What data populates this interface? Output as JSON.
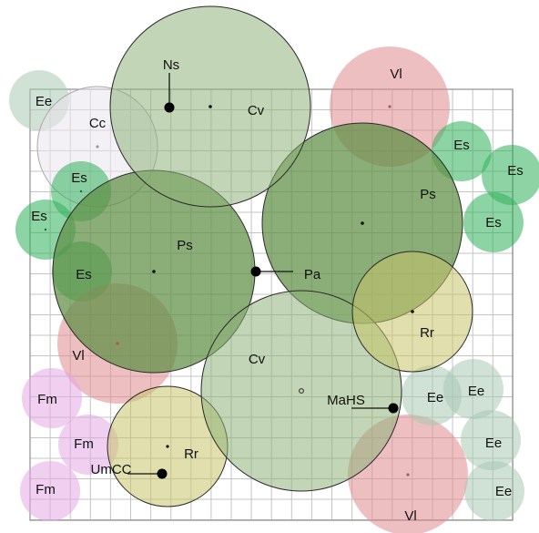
{
  "palette": {
    "green_dark": "#5e8f44",
    "green_light": "#8fb27a",
    "green_bright": "#2fb05a",
    "red": "#e08a8e",
    "olive": "#c6c46a",
    "mint": "#a9c9b3",
    "lilac": "#e3a8e3",
    "grey": "#e9e5ec",
    "outline": "#2a2a2a"
  },
  "circles": [
    {
      "id": "c_ee_tl",
      "label": "Ee",
      "color": "mint"
    },
    {
      "id": "c_cc",
      "label": "Cc",
      "color": "grey"
    },
    {
      "id": "c_vl_top",
      "label": "Vl",
      "color": "red"
    },
    {
      "id": "c_es_r1",
      "label": "Es",
      "color": "green_bright"
    },
    {
      "id": "c_es_r2",
      "label": "Es",
      "color": "green_bright"
    },
    {
      "id": "c_es_r3",
      "label": "Es",
      "color": "green_bright"
    },
    {
      "id": "c_es_l1",
      "label": "Es",
      "color": "green_bright"
    },
    {
      "id": "c_es_l2",
      "label": "Es",
      "color": "green_bright"
    },
    {
      "id": "c_es_l3",
      "label": "Es",
      "color": "green_bright"
    },
    {
      "id": "c_vl_left",
      "label": "Vl",
      "color": "red"
    },
    {
      "id": "c_ps_left",
      "label": "Ps",
      "color": "green_dark"
    },
    {
      "id": "c_ps_right",
      "label": "Ps",
      "color": "green_dark"
    },
    {
      "id": "c_cv_top",
      "label": "Cv",
      "color": "green_light"
    },
    {
      "id": "c_fm1",
      "label": "Fm",
      "color": "lilac"
    },
    {
      "id": "c_fm2",
      "label": "Fm",
      "color": "lilac"
    },
    {
      "id": "c_fm3",
      "label": "Fm",
      "color": "lilac"
    },
    {
      "id": "c_rr_bottom",
      "label": "Rr",
      "color": "olive"
    },
    {
      "id": "c_vl_bottom",
      "label": "Vl",
      "color": "red"
    },
    {
      "id": "c_ee_b1",
      "label": "Ee",
      "color": "mint"
    },
    {
      "id": "c_ee_b2",
      "label": "Ee",
      "color": "mint"
    },
    {
      "id": "c_ee_b3",
      "label": "Ee",
      "color": "mint"
    },
    {
      "id": "c_ee_b4",
      "label": "Ee",
      "color": "mint"
    },
    {
      "id": "c_cv_bottom",
      "label": "Cv",
      "color": "green_light"
    },
    {
      "id": "c_rr_right",
      "label": "Rr",
      "color": "olive"
    }
  ],
  "callouts": [
    {
      "id": "k_ns",
      "label": "Ns"
    },
    {
      "id": "k_pa",
      "label": "Pa"
    },
    {
      "id": "k_mahs",
      "label": "MaHS"
    },
    {
      "id": "k_umcc",
      "label": "UmCC"
    }
  ]
}
